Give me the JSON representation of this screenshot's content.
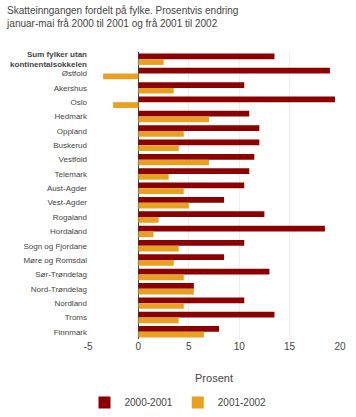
{
  "chart_data": {
    "type": "bar",
    "orientation": "horizontal",
    "title": "Skatteinngangen fordelt på fylke. Prosentvis endring\njanuar-mai frå 2000 til 2001 og frå 2001 til 2002",
    "categories": [
      "Sum fylker utan\nkontinentalsokkelen",
      "Østfold",
      "Akershus",
      "Oslo",
      "Hedmark",
      "Oppland",
      "Buskerud",
      "Vestfold",
      "Telemark",
      "Aust-Agder",
      "Vest-Agder",
      "Rogaland",
      "Hordaland",
      "Sogn og Fjordane",
      "Møre og Romsdal",
      "Sør-Trøndelag",
      "Nord-Trøndelag",
      "Nordland",
      "Troms",
      "Finnmark"
    ],
    "series": [
      {
        "name": "2000-2001",
        "color": "#8B0000",
        "values": [
          13.5,
          19.0,
          10.5,
          19.5,
          11.0,
          12.0,
          12.0,
          11.5,
          11.0,
          10.5,
          8.5,
          12.5,
          18.5,
          10.5,
          8.5,
          13.0,
          5.5,
          10.5,
          13.5,
          8.0
        ]
      },
      {
        "name": "2001-2002",
        "color": "#E8A020",
        "values": [
          2.5,
          -3.5,
          3.5,
          -2.5,
          7.0,
          4.5,
          4.0,
          7.0,
          3.0,
          4.5,
          5.0,
          2.0,
          1.5,
          4.0,
          3.5,
          4.5,
          5.5,
          4.5,
          4.0,
          6.5
        ]
      }
    ],
    "xlabel": "Prosent",
    "xlim": [
      -5,
      20
    ],
    "xticks": [
      -5,
      0,
      5,
      10,
      15,
      20
    ],
    "grid": true,
    "legend": "bottom"
  }
}
